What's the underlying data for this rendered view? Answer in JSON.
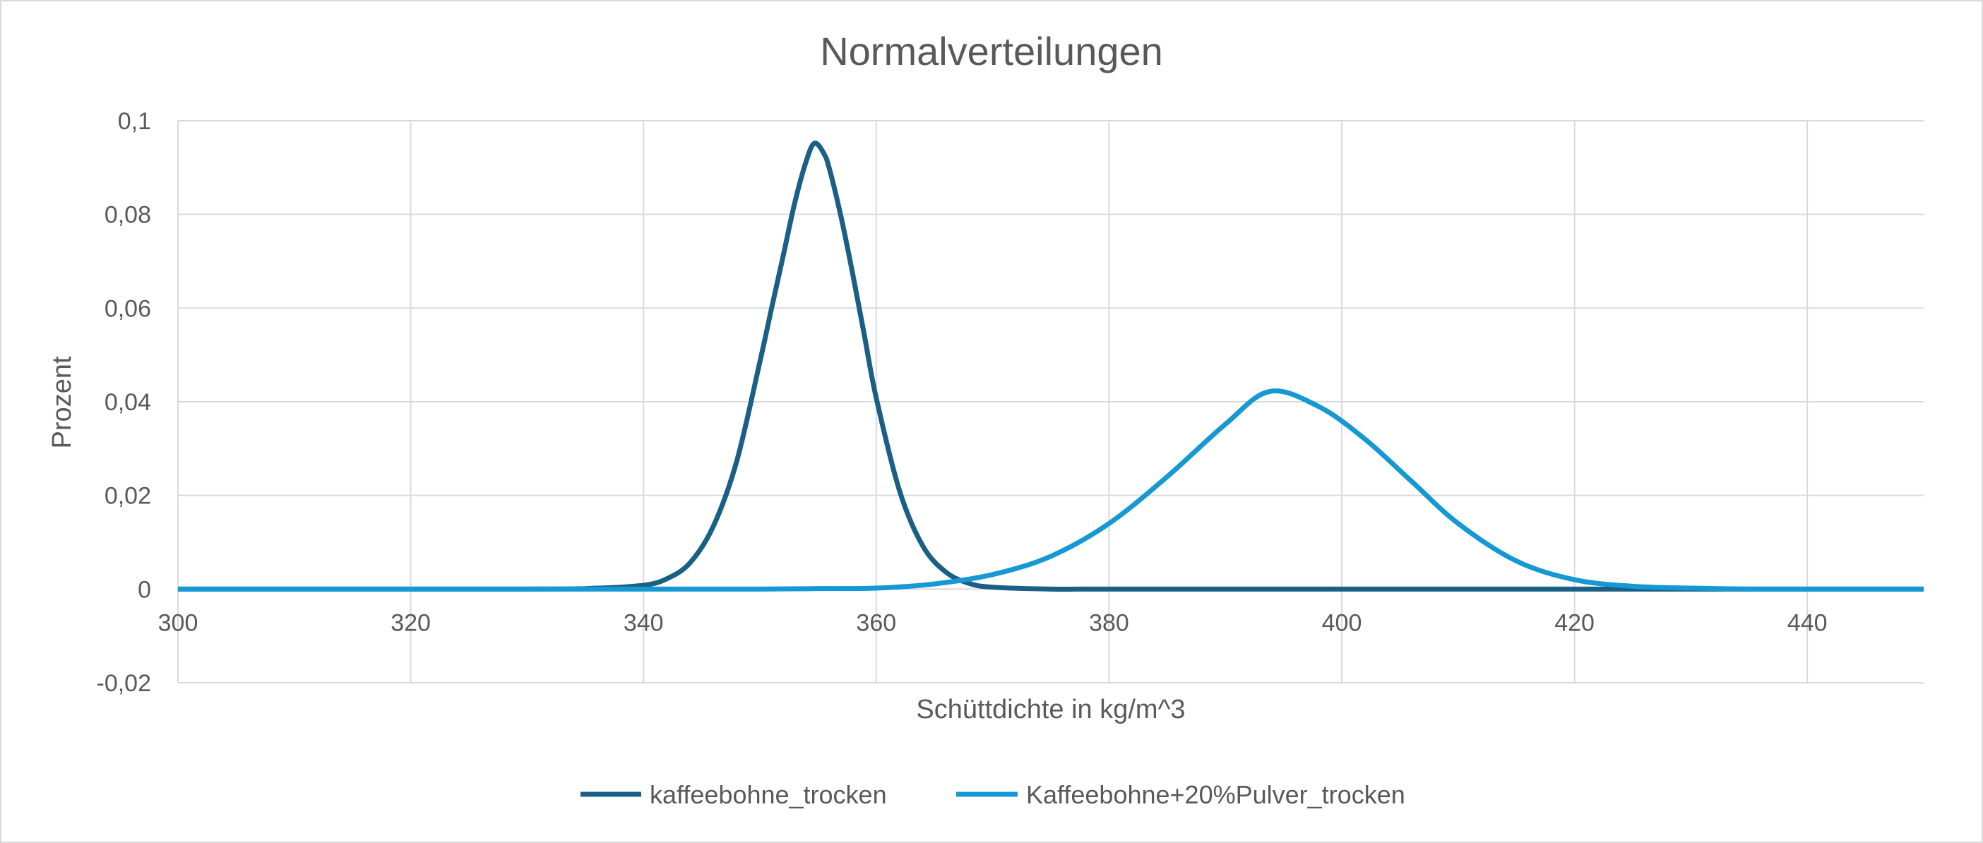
{
  "chart_data": {
    "type": "line",
    "title": "Normalverteilungen",
    "xlabel": "Schüttdichte in kg/m^3",
    "ylabel": "Prozent",
    "xlim": [
      300,
      450
    ],
    "ylim": [
      -0.02,
      0.1
    ],
    "x_ticks": [
      300,
      320,
      340,
      360,
      380,
      400,
      420,
      440
    ],
    "x_tick_labels": [
      "300",
      "320",
      "340",
      "360",
      "380",
      "400",
      "420",
      "440"
    ],
    "y_ticks": [
      -0.02,
      0,
      0.02,
      0.04,
      0.06,
      0.08,
      0.1
    ],
    "y_tick_labels": [
      "-0,02",
      "0",
      "0,02",
      "0,04",
      "0,06",
      "0,08",
      "0,1"
    ],
    "grid": true,
    "legend_position": "bottom",
    "series": [
      {
        "name": "kaffeebohne_trocken",
        "color": "#1a5f84",
        "x": [
          300,
          330,
          336,
          340,
          342,
          344,
          346,
          348,
          350,
          351,
          352,
          353,
          354,
          354.7,
          355.5,
          356,
          357,
          358,
          359,
          360,
          362,
          364,
          366,
          368,
          370,
          375,
          380,
          400,
          450
        ],
        "y": [
          0,
          0,
          0.0002,
          0.0008,
          0.0022,
          0.0056,
          0.0134,
          0.0272,
          0.0485,
          0.0599,
          0.0711,
          0.0825,
          0.0915,
          0.0952,
          0.093,
          0.0895,
          0.0792,
          0.067,
          0.0539,
          0.0408,
          0.021,
          0.0092,
          0.0036,
          0.0012,
          0.0004,
          0,
          0,
          0,
          0
        ]
      },
      {
        "name": "Kaffeebohne+20%Pulver_trocken",
        "color": "#1598d4",
        "x": [
          300,
          340,
          350,
          355,
          360,
          365,
          370,
          375,
          380,
          385,
          390,
          393.8,
          398,
          402,
          406,
          410,
          415,
          420,
          425,
          430,
          435,
          440,
          450
        ],
        "y": [
          0,
          0,
          0,
          0.0001,
          0.0002,
          0.0011,
          0.0031,
          0.007,
          0.014,
          0.024,
          0.0352,
          0.0422,
          0.039,
          0.032,
          0.023,
          0.014,
          0.006,
          0.002,
          0.0006,
          0.0002,
          0,
          0,
          0
        ]
      }
    ]
  }
}
